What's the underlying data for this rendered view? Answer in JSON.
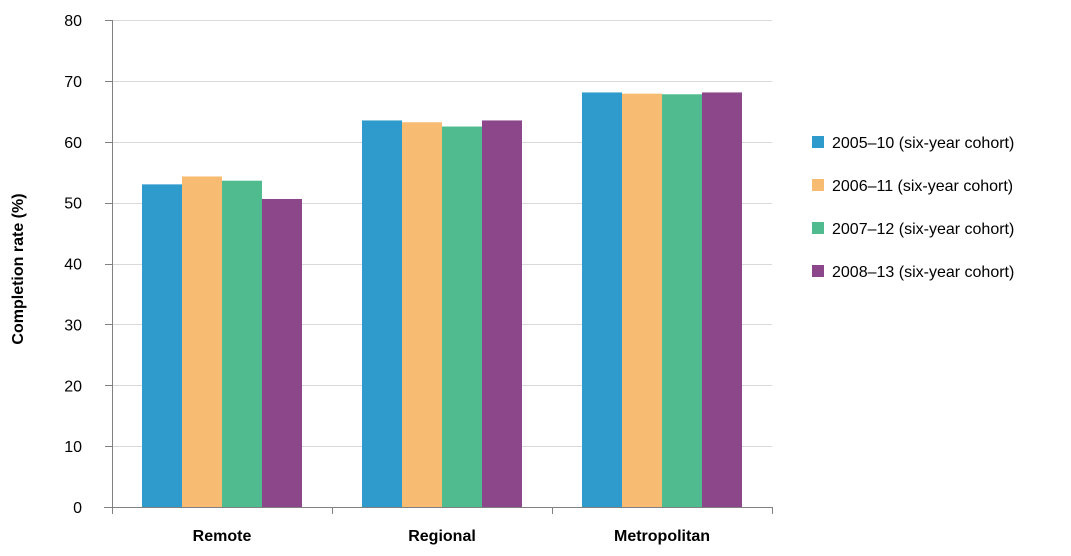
{
  "chart_data": {
    "type": "bar",
    "title": "",
    "xlabel": "",
    "ylabel": "Completion rate (%)",
    "ylim": [
      0,
      80
    ],
    "yticks": [
      0,
      10,
      20,
      30,
      40,
      50,
      60,
      70,
      80
    ],
    "grid": true,
    "legend_position": "right",
    "categories": [
      "Remote",
      "Regional",
      "Metropolitan"
    ],
    "series": [
      {
        "name": "2005–10 (six-year cohort)",
        "color": "#2f9bcc",
        "values": [
          53.0,
          63.5,
          68.1
        ]
      },
      {
        "name": "2006–11 (six-year cohort)",
        "color": "#f8bb72",
        "values": [
          54.3,
          63.2,
          67.9
        ]
      },
      {
        "name": "2007–12 (six-year cohort)",
        "color": "#4fbb8e",
        "values": [
          53.6,
          62.5,
          67.8
        ]
      },
      {
        "name": "2008–13 (six-year cohort)",
        "color": "#8b4789",
        "values": [
          50.6,
          63.5,
          68.1
        ]
      }
    ],
    "axis_color": "#808080",
    "grid_color": "#d9d9d9"
  }
}
